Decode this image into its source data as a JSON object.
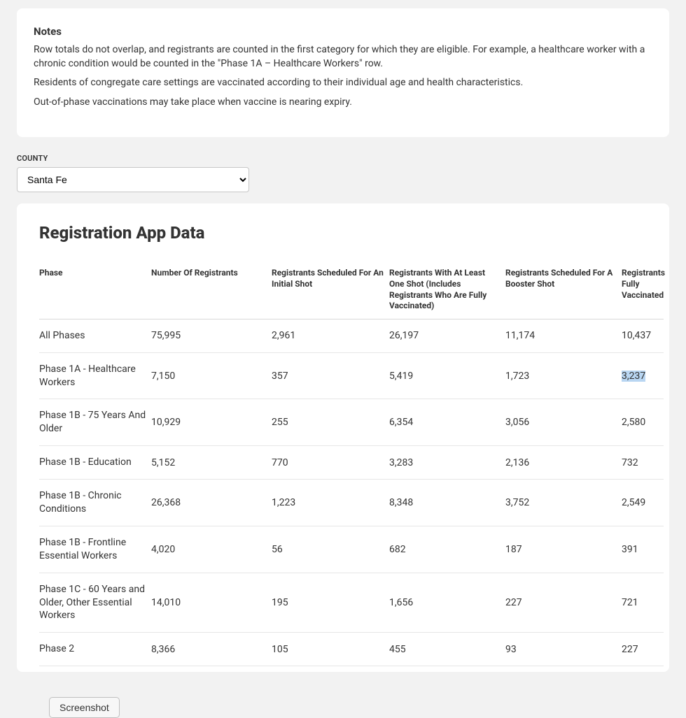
{
  "notes": {
    "title": "Notes",
    "paragraphs": [
      "Row totals do not overlap, and registrants are counted in the first category for which they are eligible. For example, a healthcare worker with a chronic condition would be counted in the \"Phase 1A – Healthcare Workers\" row.",
      "Residents of congregate care settings are vaccinated according to their individual age and health characteristics.",
      "Out-of-phase vaccinations may take place when vaccine is nearing expiry."
    ]
  },
  "county": {
    "label": "COUNTY",
    "selected": "Santa Fe"
  },
  "dataTable": {
    "title": "Registration App Data",
    "columns": [
      "Phase",
      "Number Of Registrants",
      "Registrants Scheduled For An Initial Shot",
      "Registrants With At Least One Shot (Includes Registrants Who Are Fully Vaccinated)",
      "Registrants Scheduled For A Booster Shot",
      "Registrants Fully Vaccinated"
    ],
    "rows": [
      {
        "phase": "All Phases",
        "num": "75,995",
        "init": "2,961",
        "one": "26,197",
        "boost": "11,174",
        "full": "10,437",
        "highlightFull": false
      },
      {
        "phase": "Phase 1A - Healthcare Workers",
        "num": "7,150",
        "init": "357",
        "one": "5,419",
        "boost": "1,723",
        "full": "3,237",
        "highlightFull": true
      },
      {
        "phase": "Phase 1B - 75 Years And Older",
        "num": "10,929",
        "init": "255",
        "one": "6,354",
        "boost": "3,056",
        "full": "2,580",
        "highlightFull": false
      },
      {
        "phase": "Phase 1B - Education",
        "num": "5,152",
        "init": "770",
        "one": "3,283",
        "boost": "2,136",
        "full": "732",
        "highlightFull": false
      },
      {
        "phase": "Phase 1B - Chronic Conditions",
        "num": "26,368",
        "init": "1,223",
        "one": "8,348",
        "boost": "3,752",
        "full": "2,549",
        "highlightFull": false
      },
      {
        "phase": "Phase 1B - Frontline Essential Workers",
        "num": "4,020",
        "init": "56",
        "one": "682",
        "boost": "187",
        "full": "391",
        "highlightFull": false
      },
      {
        "phase": "Phase 1C - 60 Years and Older, Other Essential Workers",
        "num": "14,010",
        "init": "195",
        "one": "1,656",
        "boost": "227",
        "full": "721",
        "highlightFull": false
      },
      {
        "phase": "Phase 2",
        "num": "8,366",
        "init": "105",
        "one": "455",
        "boost": "93",
        "full": "227",
        "highlightFull": false
      }
    ]
  },
  "screenshotButton": "Screenshot",
  "colors": {
    "pageBg": "#f2f2f2",
    "cardBg": "#ffffff",
    "border": "#d9d9d9",
    "highlight": "#b9d6f2"
  }
}
